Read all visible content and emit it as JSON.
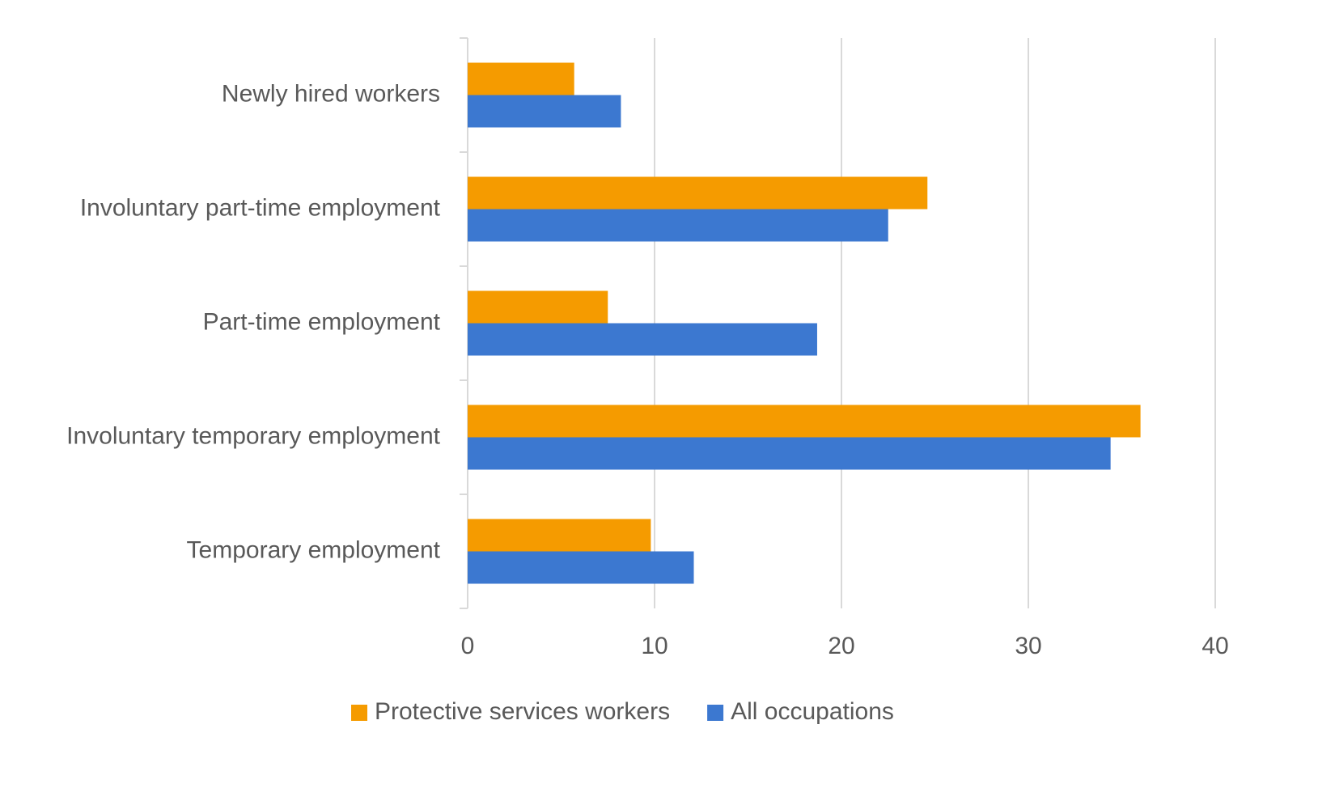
{
  "chart_data": {
    "type": "bar",
    "orientation": "horizontal",
    "categories": [
      "Newly hired workers",
      "Involuntary part-time employment",
      "Part-time employment",
      "Involuntary temporary employment",
      "Temporary employment"
    ],
    "series": [
      {
        "name": "Protective services workers",
        "color": "#F59B00",
        "values": [
          5.7,
          24.6,
          7.5,
          36.0,
          9.8
        ]
      },
      {
        "name": "All occupations",
        "color": "#3C78D0",
        "values": [
          8.2,
          22.5,
          18.7,
          34.4,
          12.1
        ]
      }
    ],
    "xlim": [
      0,
      40
    ],
    "xticks": [
      0,
      10,
      20,
      30,
      40
    ],
    "title": "",
    "xlabel": "",
    "ylabel": "",
    "grid": "vertical",
    "legend_position": "bottom"
  }
}
